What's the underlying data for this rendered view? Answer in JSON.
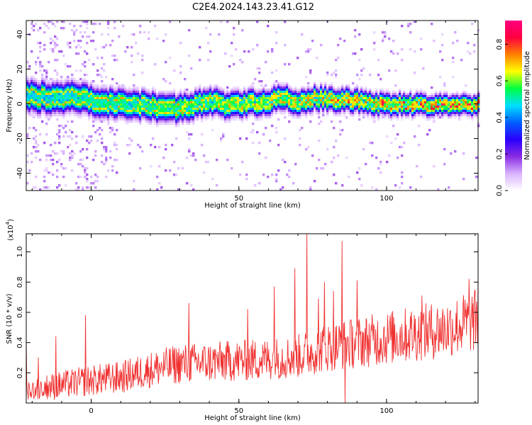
{
  "figure": {
    "title": "C2E4.2024.143.23.41.G12"
  },
  "chart_data": [
    {
      "type": "heatmap",
      "xlabel": "Height of straight line (km)",
      "ylabel": "Frequency (Hz)",
      "xlim": [
        -22,
        131
      ],
      "ylim": [
        -50,
        48
      ],
      "xticks": [
        0,
        50,
        100
      ],
      "yticks": [
        -40,
        -20,
        0,
        20,
        40
      ],
      "colorbar": {
        "label": "Normalized spectral amplitude",
        "range": [
          0,
          0.93
        ],
        "ticks": [
          0.0,
          0.2,
          0.4,
          0.6,
          0.8
        ],
        "colormap": [
          "#ffffff",
          "#d9b3ff",
          "#8a2be2",
          "#2a00ff",
          "#0060ff",
          "#00e0ff",
          "#00ff40",
          "#ffff00",
          "#ff8000",
          "#ff0040",
          "#ff0080"
        ]
      },
      "ridge": {
        "description_free": true,
        "points": [
          [
            -22,
            5
          ],
          [
            -15,
            4
          ],
          [
            -10,
            3
          ],
          [
            -5,
            5
          ],
          [
            0,
            2
          ],
          [
            5,
            1
          ],
          [
            10,
            0
          ],
          [
            15,
            0
          ],
          [
            20,
            -1
          ],
          [
            25,
            -2
          ],
          [
            30,
            -2
          ],
          [
            35,
            0
          ],
          [
            40,
            2
          ],
          [
            45,
            0
          ],
          [
            50,
            0
          ],
          [
            55,
            1
          ],
          [
            60,
            1
          ],
          [
            62,
            4
          ],
          [
            65,
            5
          ],
          [
            68,
            0
          ],
          [
            70,
            2
          ],
          [
            75,
            4
          ],
          [
            80,
            3
          ],
          [
            85,
            3
          ],
          [
            90,
            2
          ],
          [
            95,
            1
          ],
          [
            100,
            0
          ],
          [
            105,
            0
          ],
          [
            110,
            0
          ],
          [
            115,
            0
          ],
          [
            120,
            0
          ],
          [
            125,
            0
          ],
          [
            131,
            0
          ]
        ],
        "width_hz": [
          6,
          4
        ]
      }
    },
    {
      "type": "line",
      "xlabel": "Height of straight line (km)",
      "ylabel": "SNR (10 * v/v)",
      "y_scale_label": "(x10",
      "y_scale_exp": "4",
      "y_scale_close": ")",
      "xlim": [
        -22,
        131
      ],
      "ylim": [
        0,
        1.12
      ],
      "xticks": [
        0,
        50,
        100
      ],
      "yticks": [
        0.2,
        0.4,
        0.6,
        0.8,
        1.0
      ],
      "series": [
        {
          "color": "#f03030",
          "trend": [
            [
              -22,
              0.08
            ],
            [
              -10,
              0.12
            ],
            [
              0,
              0.15
            ],
            [
              10,
              0.17
            ],
            [
              20,
              0.22
            ],
            [
              30,
              0.26
            ],
            [
              40,
              0.27
            ],
            [
              50,
              0.28
            ],
            [
              60,
              0.29
            ],
            [
              70,
              0.31
            ],
            [
              80,
              0.37
            ],
            [
              90,
              0.4
            ],
            [
              100,
              0.43
            ],
            [
              110,
              0.46
            ],
            [
              120,
              0.49
            ],
            [
              131,
              0.55
            ]
          ],
          "spikes": [
            [
              -22,
              0.42
            ],
            [
              -18,
              0.3
            ],
            [
              -12,
              0.44
            ],
            [
              -2,
              0.58
            ],
            [
              33,
              0.66
            ],
            [
              53,
              0.62
            ],
            [
              62,
              0.77
            ],
            [
              69,
              0.89
            ],
            [
              73,
              1.12
            ],
            [
              77,
              0.69
            ],
            [
              79,
              0.8
            ],
            [
              82,
              0.74
            ],
            [
              85,
              1.07
            ],
            [
              86,
              0.0
            ],
            [
              90,
              0.81
            ],
            [
              112,
              0.71
            ],
            [
              128,
              0.82
            ],
            [
              131,
              0.84
            ]
          ]
        }
      ]
    }
  ]
}
